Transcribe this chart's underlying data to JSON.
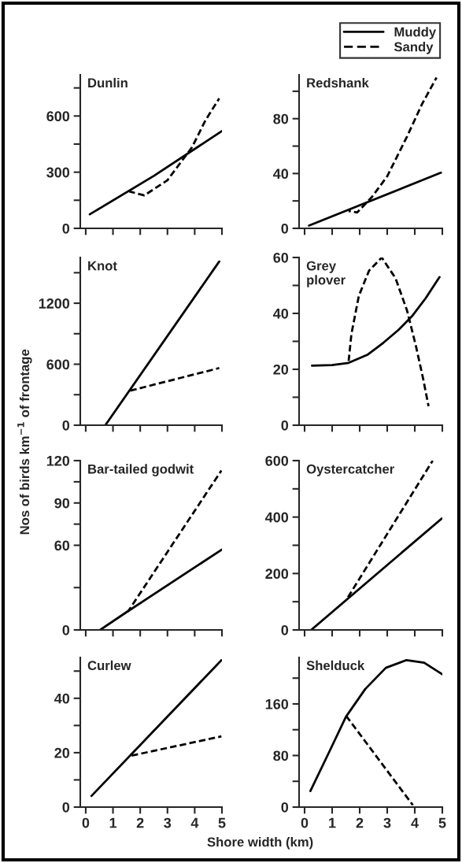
{
  "chart_data": [
    {
      "type": "line",
      "title": "Dunlin",
      "xlim": [
        -0.2,
        5
      ],
      "xticks": [
        0,
        1,
        2,
        3,
        4,
        5
      ],
      "ylim": [
        0,
        820
      ],
      "yticks": [
        0,
        {
          "value": 150,
          "label": null
        },
        300,
        {
          "value": 450,
          "label": null
        },
        600,
        {
          "value": 750,
          "label": null
        }
      ],
      "tick_labels": "y",
      "series": [
        {
          "color": "#000000",
          "line_style": "solid",
          "x": [
            0.15,
            2.5,
            5
          ],
          "values": [
            75,
            280,
            520
          ]
        },
        {
          "color": "#000000",
          "line_style": "dashed",
          "x": [
            1.6,
            2.15,
            3,
            3.9,
            4.4,
            4.9
          ],
          "values": [
            197,
            176,
            257,
            433,
            578,
            694
          ]
        }
      ]
    },
    {
      "type": "line",
      "title": "Redshank",
      "xlim": [
        -0.2,
        5
      ],
      "xticks": [
        0,
        1,
        2,
        3,
        4,
        5
      ],
      "ylim": [
        0,
        112
      ],
      "yticks": [
        0,
        {
          "value": 20,
          "label": null
        },
        40,
        {
          "value": 60,
          "label": null
        },
        80,
        {
          "value": 100,
          "label": null
        }
      ],
      "tick_labels": "y",
      "legend": "top right",
      "series": [
        {
          "name": "Muddy",
          "color": "#000000",
          "line_style": "solid",
          "x": [
            0.16,
            4.95
          ],
          "values": [
            2,
            40.6
          ]
        },
        {
          "name": "Sandy",
          "color": "#000000",
          "line_style": "dashed",
          "x": [
            1.6,
            1.91,
            2.45,
            3.0,
            3.72,
            4.26,
            4.79
          ],
          "values": [
            12.6,
            11.6,
            23,
            38,
            67,
            90.5,
            110
          ]
        }
      ]
    },
    {
      "type": "line",
      "title": "Knot",
      "ylabel": "Nos of birds km$^{−1}$ of frontage",
      "xlim": [
        -0.2,
        5
      ],
      "xticks": [
        0,
        1,
        2,
        3,
        4,
        5
      ],
      "ylim": [
        0,
        1650
      ],
      "yticks": [
        0,
        {
          "value": 300,
          "label": null
        },
        600,
        {
          "value": 900,
          "label": null
        },
        1200,
        {
          "value": 1500,
          "label": null
        }
      ],
      "tick_labels": "y",
      "series": [
        {
          "color": "#000000",
          "line_style": "solid",
          "x": [
            0.72,
            4.9
          ],
          "values": [
            0,
            1610
          ]
        },
        {
          "color": "#000000",
          "line_style": "dashed",
          "x": [
            1.52,
            4.9
          ],
          "values": [
            332,
            562
          ]
        }
      ]
    },
    {
      "type": "line",
      "title": "Grey\nplover",
      "xlim": [
        -0.2,
        5
      ],
      "xticks": [
        0,
        1,
        2,
        3,
        4,
        5
      ],
      "ylim": [
        0,
        60
      ],
      "yticks": [
        0,
        {
          "value": 10,
          "label": null
        },
        20,
        {
          "value": 30,
          "label": null
        },
        40,
        {
          "value": 50,
          "label": null
        },
        60
      ],
      "tick_labels": "y",
      "series": [
        {
          "color": "#000000",
          "line_style": "solid",
          "x": [
            0.27,
            1.0,
            1.6,
            2.3,
            2.86,
            3.4,
            3.9,
            4.4,
            4.9
          ],
          "values": [
            21.3,
            21.5,
            22.3,
            25.3,
            29.5,
            34,
            39,
            45.5,
            53
          ]
        },
        {
          "color": "#000000",
          "line_style": "dashed",
          "x": [
            1.6,
            1.7,
            1.97,
            2.34,
            2.8,
            3.3,
            3.72,
            4.04,
            4.3,
            4.5
          ],
          "values": [
            23,
            32.6,
            46.3,
            55.3,
            60,
            52.6,
            41,
            28.4,
            16.8,
            6.8
          ]
        }
      ]
    },
    {
      "type": "line",
      "title": "Bar-tailed godwit",
      "xlim": [
        -0.2,
        5
      ],
      "xticks": [
        0,
        1,
        2,
        3,
        4,
        5
      ],
      "ylim": [
        0,
        120
      ],
      "yticks": [
        0,
        {
          "value": 30,
          "label": null
        },
        60,
        {
          "value": 75,
          "label": null
        },
        90,
        {
          "value": 105,
          "label": null
        },
        120
      ],
      "tick_labels": "y",
      "series": [
        {
          "color": "#000000",
          "line_style": "solid",
          "x": [
            0.53,
            1.45,
            5
          ],
          "values": [
            0,
            12,
            57
          ]
        },
        {
          "color": "#000000",
          "line_style": "dashed",
          "x": [
            1.55,
            4.98
          ],
          "values": [
            13,
            113
          ]
        }
      ]
    },
    {
      "type": "line",
      "title": "Oystercatcher",
      "xlim": [
        -0.2,
        5
      ],
      "xticks": [
        0,
        1,
        2,
        3,
        4,
        5
      ],
      "ylim": [
        0,
        600
      ],
      "yticks": [
        0,
        {
          "value": 100,
          "label": null
        },
        200,
        {
          "value": 300,
          "label": null
        },
        400,
        {
          "value": 500,
          "label": null
        },
        600
      ],
      "tick_labels": "y",
      "series": [
        {
          "color": "#000000",
          "line_style": "solid",
          "x": [
            0.24,
            4.98
          ],
          "values": [
            0,
            395
          ]
        },
        {
          "color": "#000000",
          "line_style": "dashed",
          "x": [
            1.55,
            4.65
          ],
          "values": [
            112,
            600
          ]
        }
      ]
    },
    {
      "type": "line",
      "title": "Curlew",
      "xlabel": "Shore width (km)",
      "xlim": [
        -0.2,
        5
      ],
      "xticks": [
        0,
        1,
        2,
        3,
        4,
        5
      ],
      "ylim": [
        0,
        55
      ],
      "yticks": [
        0,
        {
          "value": 10,
          "label": null
        },
        20,
        {
          "value": 30,
          "label": null
        },
        40,
        {
          "value": 50,
          "label": null
        }
      ],
      "series": [
        {
          "color": "#000000",
          "line_style": "solid",
          "x": [
            0.21,
            4.98
          ],
          "values": [
            4.1,
            54
          ]
        },
        {
          "color": "#000000",
          "line_style": "dashed",
          "x": [
            1.67,
            4.98
          ],
          "values": [
            18.9,
            26
          ]
        }
      ]
    },
    {
      "type": "line",
      "title": "Shelduck",
      "xlim": [
        -0.2,
        5
      ],
      "xticks": [
        0,
        1,
        2,
        3,
        4,
        5
      ],
      "ylim": [
        0,
        232
      ],
      "yticks": [
        0,
        {
          "value": 40,
          "label": null
        },
        80,
        {
          "value": 120,
          "label": null
        },
        160,
        {
          "value": 200,
          "label": null
        }
      ],
      "series": [
        {
          "color": "#000000",
          "line_style": "solid",
          "x": [
            0.21,
            0.91,
            1.5,
            2.2,
            2.95,
            3.7,
            4.34,
            5
          ],
          "values": [
            25,
            87,
            140,
            183,
            216,
            228,
            224,
            206
          ]
        },
        {
          "color": "#000000",
          "line_style": "dashed",
          "x": [
            1.5,
            3.93
          ],
          "values": [
            142,
            3
          ]
        }
      ]
    }
  ]
}
